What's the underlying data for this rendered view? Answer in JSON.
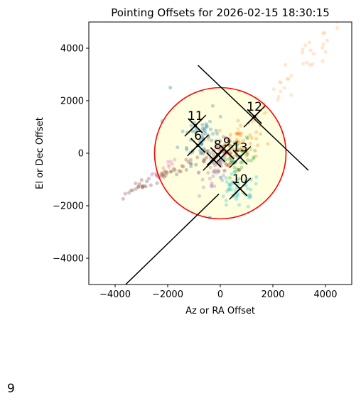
{
  "chart_data": {
    "type": "scatter",
    "title": "Pointing Offsets for 2026-02-15 18:30:15",
    "xlabel": "Az or RA Offset",
    "ylabel": "El or Dec Offset",
    "xlim": [
      -5000,
      5000
    ],
    "ylim": [
      -5000,
      5000
    ],
    "xticks": [
      -4000,
      -2000,
      0,
      2000,
      4000
    ],
    "yticks": [
      -4000,
      -2000,
      0,
      2000,
      4000
    ],
    "xtick_labels": [
      "−4000",
      "−2000",
      "0",
      "2000",
      "4000"
    ],
    "ytick_labels": [
      "−4000",
      "−2000",
      "0",
      "2000",
      "4000"
    ],
    "grid": false,
    "circle": {
      "center": [
        0,
        0
      ],
      "radius": 2500,
      "edge_color": "#ff0000",
      "fill_color": "#ffffe0"
    },
    "lines": [
      {
        "x": [
          -850,
          3350
        ],
        "y": [
          3350,
          -650
        ]
      },
      {
        "x": [
          -3600,
          -50
        ],
        "y": [
          -5000,
          -1550
        ]
      }
    ],
    "markers": [
      {
        "label": "11",
        "x": -950,
        "y": 1050
      },
      {
        "label": "6",
        "x": -850,
        "y": 300
      },
      {
        "label": "12",
        "x": 1300,
        "y": 1400
      },
      {
        "label": "10",
        "x": 750,
        "y": -1350
      },
      {
        "label": "13",
        "x": 750,
        "y": -150
      },
      {
        "label": "9",
        "x": 250,
        "y": 50
      },
      {
        "label": "8",
        "x": -100,
        "y": -50
      },
      {
        "label": "",
        "x": -250,
        "y": -250
      }
    ],
    "clusters": [
      {
        "color": "#1f77b4",
        "cx": -650,
        "cy": 650,
        "sx": 450,
        "sy": 500,
        "n": 60
      },
      {
        "color": "#ff7f0e",
        "cx": 700,
        "cy": 450,
        "sx": 400,
        "sy": 350,
        "n": 50
      },
      {
        "color": "#2ca02c",
        "cx": 700,
        "cy": -200,
        "sx": 350,
        "sy": 350,
        "n": 45
      },
      {
        "color": "#d62728",
        "cx": 150,
        "cy": 0,
        "sx": 250,
        "sy": 250,
        "n": 25
      },
      {
        "color": "#9467bd",
        "cx": -200,
        "cy": -700,
        "sx": 300,
        "sy": 500,
        "n": 40
      },
      {
        "color": "#17becf",
        "cx": 650,
        "cy": -1450,
        "sx": 450,
        "sy": 350,
        "n": 45
      }
    ],
    "trails": [
      {
        "color": "#8c564b",
        "from": [
          -4000,
          -1700
        ],
        "to": [
          -400,
          0
        ],
        "n": 55,
        "spread": 120
      },
      {
        "color": "#e377c2",
        "from": [
          -2600,
          -800
        ],
        "to": [
          -1700,
          -300
        ],
        "n": 12,
        "spread": 120
      },
      {
        "color": "#ffbb78",
        "from": [
          400,
          500
        ],
        "to": [
          4500,
          4800
        ],
        "n": 45,
        "spread": 220
      }
    ],
    "outliers": [
      {
        "color": "#1f77b4",
        "x": -1900,
        "y": 2500
      },
      {
        "color": "#1f77b4",
        "x": -400,
        "y": -2450
      }
    ]
  },
  "page_number": "9"
}
